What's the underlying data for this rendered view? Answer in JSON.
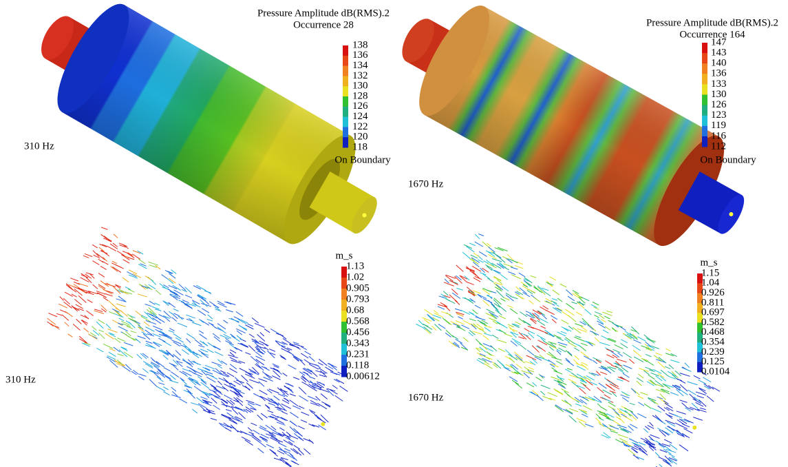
{
  "panels": [
    {
      "label": "310 Hz",
      "legend": {
        "title": [
          "Pressure Amplitude dB(RMS).2",
          "Occurrence 28"
        ],
        "ticks": [
          "138",
          "136",
          "134",
          "132",
          "130",
          "128",
          "126",
          "124",
          "122",
          "120",
          "118"
        ],
        "footer": "On Boundary"
      }
    },
    {
      "label": "1670 Hz",
      "legend": {
        "title": [
          "Pressure Amplitude dB(RMS).2",
          "Occurrence 164"
        ],
        "ticks": [
          "147",
          "143",
          "140",
          "136",
          "133",
          "130",
          "126",
          "123",
          "119",
          "116",
          "112"
        ],
        "footer": "On Boundary"
      }
    },
    {
      "label": "310 Hz",
      "legend": {
        "title": [
          "m_s"
        ],
        "ticks": [
          "1.13",
          "1.02",
          "0.905",
          "0.793",
          "0.68",
          "0.568",
          "0.456",
          "0.343",
          "0.231",
          "0.118",
          "0.00612"
        ]
      }
    },
    {
      "label": "1670 Hz",
      "legend": {
        "title": [
          "m_s"
        ],
        "ticks": [
          "1.15",
          "1.04",
          "0.926",
          "0.811",
          "0.697",
          "0.582",
          "0.468",
          "0.354",
          "0.239",
          "0.125",
          "0.0104"
        ]
      }
    }
  ]
}
